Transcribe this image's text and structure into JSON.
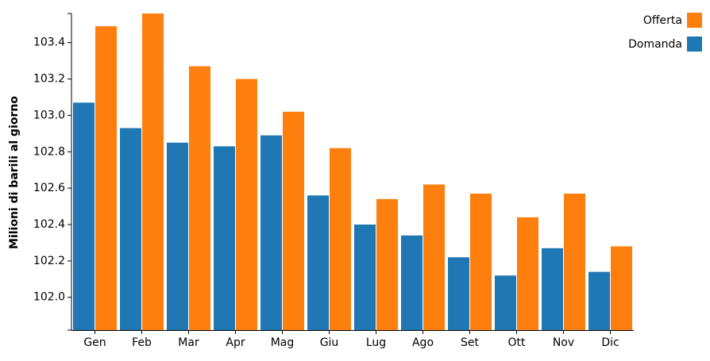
{
  "chart_data": {
    "type": "bar",
    "categories": [
      "Gen",
      "Feb",
      "Mar",
      "Apr",
      "Mag",
      "Giu",
      "Lug",
      "Ago",
      "Set",
      "Ott",
      "Nov",
      "Dic"
    ],
    "series": [
      {
        "name": "Domanda",
        "color": "#1f77b4",
        "values": [
          103.07,
          102.93,
          102.85,
          102.83,
          102.89,
          102.56,
          102.4,
          102.34,
          102.22,
          102.12,
          102.27,
          102.14
        ]
      },
      {
        "name": "Offerta",
        "color": "#ff7f0e",
        "values": [
          103.49,
          103.56,
          103.27,
          103.2,
          103.02,
          102.82,
          102.54,
          102.62,
          102.57,
          102.44,
          102.57,
          102.28
        ]
      }
    ],
    "ylabel": "Milioni di barili al giorno",
    "xlabel": "",
    "ylim": [
      101.82,
      103.56
    ],
    "yticks": [
      "102.0",
      "102.2",
      "102.4",
      "102.6",
      "102.8",
      "103.0",
      "103.2",
      "103.4"
    ],
    "legend_placement": "top-right",
    "grid": false
  }
}
